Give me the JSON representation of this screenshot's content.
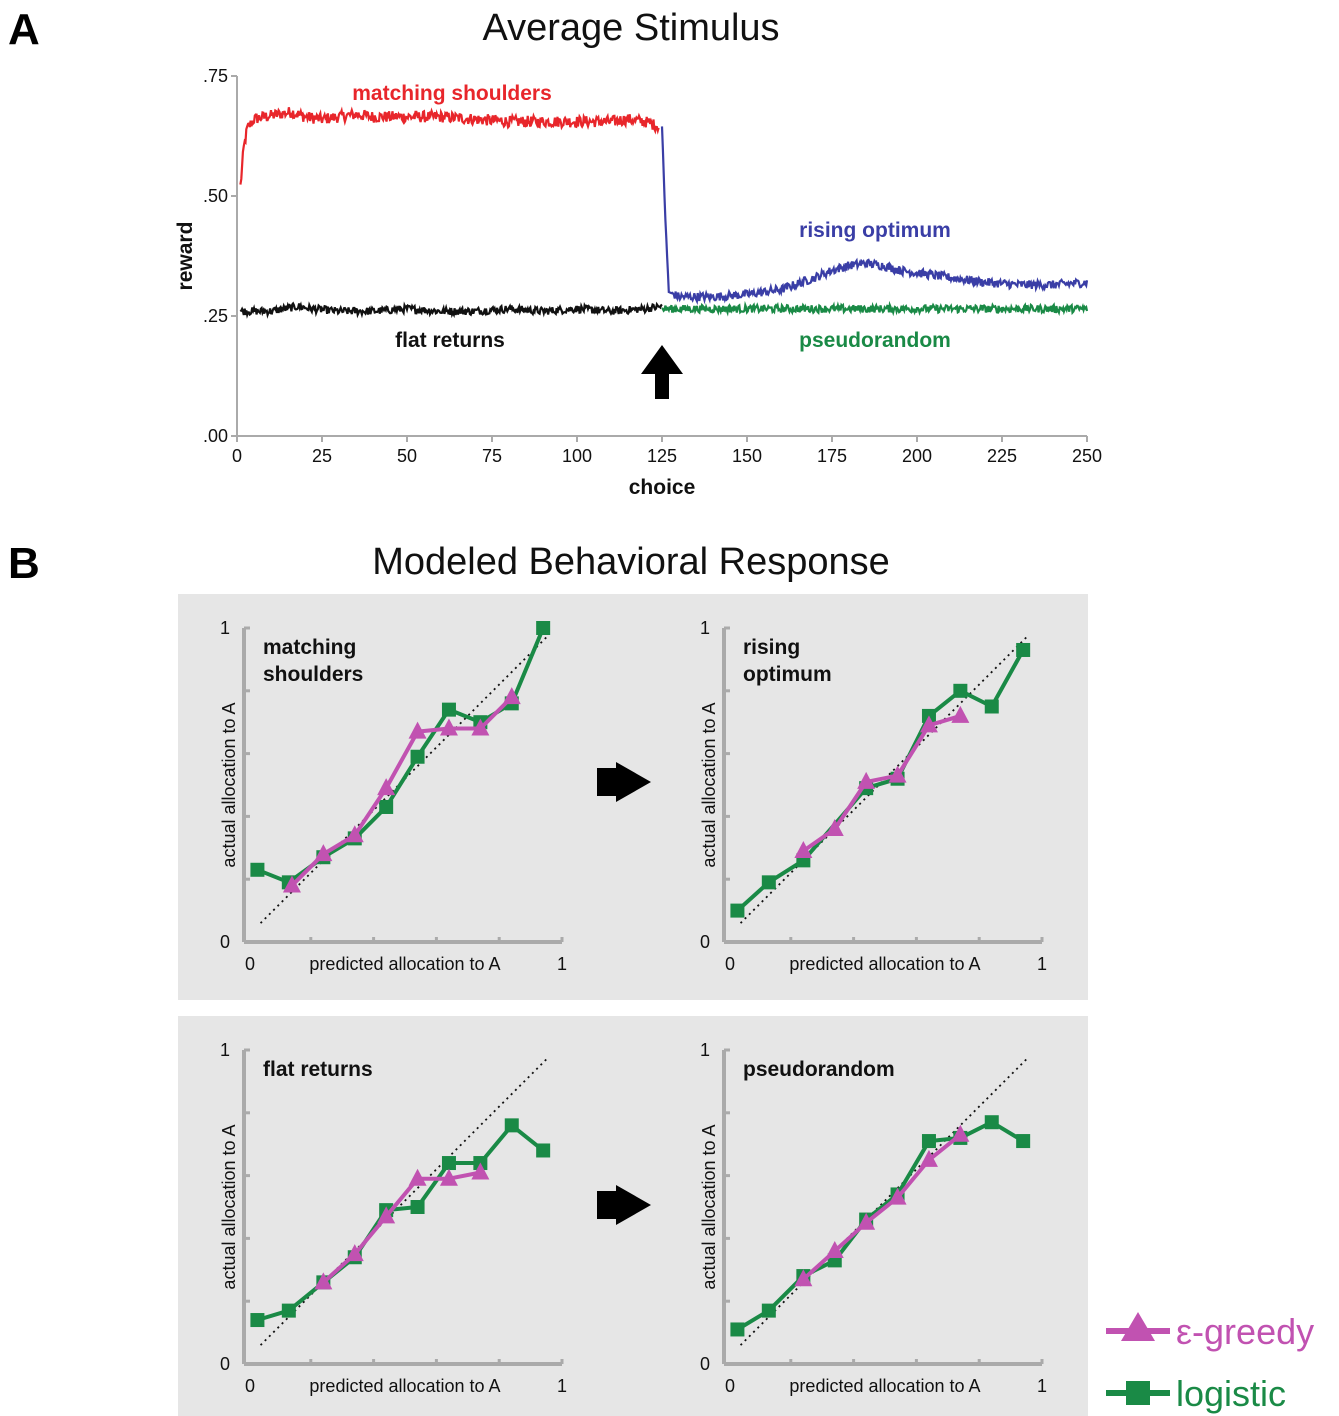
{
  "colors": {
    "red": "#e8262b",
    "blue": "#3a3ea6",
    "black": "#111111",
    "green": "#1a8a46",
    "magenta": "#c152b1",
    "panel_bg": "#e6e6e6"
  },
  "panel_a": {
    "letter": "A",
    "title": "Average Stimulus",
    "xlabel": "choice",
    "ylabel": "reward",
    "y_ticks": [
      ".00",
      ".25",
      ".50",
      ".75"
    ],
    "x_ticks": [
      "0",
      "25",
      "50",
      "75",
      "100",
      "125",
      "150",
      "175",
      "200",
      "225",
      "250"
    ],
    "arrow_icon": "up-arrow-icon"
  },
  "panel_b": {
    "letter": "B",
    "title": "Modeled Behavioral Response",
    "xlabel": "predicted allocation to A",
    "ylabel": "actual allocation to A",
    "tick_zero": "0",
    "tick_one": "1",
    "transition_icon": "right-arrow-icon"
  },
  "legend": {
    "egreedy": "ε-greedy",
    "logistic": "logistic"
  },
  "chart_data": [
    {
      "type": "line",
      "title": "Average Stimulus",
      "xlabel": "choice",
      "ylabel": "reward",
      "xlim": [
        0,
        250
      ],
      "ylim": [
        0,
        0.75
      ],
      "series": [
        {
          "name": "matching shoulders",
          "color": "#e8262b",
          "x": [
            1,
            2,
            3,
            5,
            8,
            12,
            16,
            20,
            25,
            30,
            35,
            40,
            50,
            60,
            70,
            80,
            90,
            100,
            110,
            115,
            120,
            124
          ],
          "y": [
            0.52,
            0.6,
            0.64,
            0.66,
            0.665,
            0.67,
            0.675,
            0.665,
            0.66,
            0.665,
            0.67,
            0.665,
            0.665,
            0.665,
            0.66,
            0.655,
            0.655,
            0.655,
            0.655,
            0.66,
            0.655,
            0.645
          ]
        },
        {
          "name": "flat returns",
          "color": "#111111",
          "x": [
            1,
            10,
            18,
            22,
            30,
            40,
            50,
            60,
            70,
            80,
            90,
            100,
            110,
            120,
            125
          ],
          "y": [
            0.26,
            0.26,
            0.27,
            0.265,
            0.26,
            0.26,
            0.265,
            0.26,
            0.26,
            0.265,
            0.26,
            0.265,
            0.26,
            0.265,
            0.27
          ]
        },
        {
          "name": "rising optimum",
          "color": "#3a3ea6",
          "x": [
            125,
            126,
            127,
            130,
            140,
            150,
            160,
            170,
            175,
            180,
            185,
            190,
            195,
            200,
            210,
            220,
            230,
            240,
            250
          ],
          "y": [
            0.645,
            0.45,
            0.3,
            0.29,
            0.29,
            0.295,
            0.305,
            0.33,
            0.345,
            0.355,
            0.36,
            0.355,
            0.345,
            0.34,
            0.33,
            0.32,
            0.315,
            0.315,
            0.32
          ]
        },
        {
          "name": "pseudorandom",
          "color": "#1a8a46",
          "x": [
            125,
            140,
            160,
            180,
            200,
            220,
            240,
            250
          ],
          "y": [
            0.265,
            0.265,
            0.265,
            0.265,
            0.265,
            0.265,
            0.265,
            0.265
          ]
        }
      ],
      "annotations": [
        {
          "text": "",
          "x": 125,
          "y": 0.16,
          "kind": "up-arrow"
        }
      ]
    },
    {
      "type": "line",
      "title": "matching shoulders",
      "xlabel": "predicted allocation to A",
      "ylabel": "actual allocation to A",
      "xlim": [
        0,
        1
      ],
      "ylim": [
        0,
        1
      ],
      "series": [
        {
          "name": "ε-greedy",
          "color": "#c152b1",
          "x": [
            0.14,
            0.24,
            0.34,
            0.44,
            0.54,
            0.64,
            0.74,
            0.84
          ],
          "y": [
            0.18,
            0.28,
            0.34,
            0.49,
            0.67,
            0.68,
            0.68,
            0.78
          ]
        },
        {
          "name": "logistic",
          "color": "#1a8a46",
          "x": [
            0.03,
            0.13,
            0.24,
            0.34,
            0.44,
            0.54,
            0.64,
            0.74,
            0.84,
            0.94
          ],
          "y": [
            0.23,
            0.19,
            0.27,
            0.33,
            0.43,
            0.59,
            0.74,
            0.7,
            0.76,
            1.0
          ]
        }
      ]
    },
    {
      "type": "line",
      "title": "rising optimum",
      "xlabel": "predicted allocation to A",
      "ylabel": "actual allocation to A",
      "xlim": [
        0,
        1
      ],
      "ylim": [
        0,
        1
      ],
      "series": [
        {
          "name": "ε-greedy",
          "color": "#c152b1",
          "x": [
            0.24,
            0.34,
            0.44,
            0.54,
            0.64,
            0.74
          ],
          "y": [
            0.29,
            0.36,
            0.51,
            0.53,
            0.69,
            0.72
          ]
        },
        {
          "name": "logistic",
          "color": "#1a8a46",
          "x": [
            0.03,
            0.13,
            0.24,
            0.44,
            0.54,
            0.64,
            0.74,
            0.84,
            0.94
          ],
          "y": [
            0.1,
            0.19,
            0.26,
            0.49,
            0.52,
            0.72,
            0.8,
            0.75,
            0.93
          ]
        }
      ]
    },
    {
      "type": "line",
      "title": "flat returns",
      "xlabel": "predicted allocation to A",
      "ylabel": "actual allocation to A",
      "xlim": [
        0,
        1
      ],
      "ylim": [
        0,
        1
      ],
      "series": [
        {
          "name": "ε-greedy",
          "color": "#c152b1",
          "x": [
            0.24,
            0.34,
            0.44,
            0.54,
            0.64,
            0.74
          ],
          "y": [
            0.26,
            0.35,
            0.47,
            0.59,
            0.59,
            0.61
          ]
        },
        {
          "name": "logistic",
          "color": "#1a8a46",
          "x": [
            0.03,
            0.13,
            0.24,
            0.34,
            0.44,
            0.54,
            0.64,
            0.74,
            0.84,
            0.94
          ],
          "y": [
            0.14,
            0.17,
            0.26,
            0.34,
            0.49,
            0.5,
            0.64,
            0.64,
            0.76,
            0.68
          ]
        }
      ]
    },
    {
      "type": "line",
      "title": "pseudorandom",
      "xlabel": "predicted allocation to A",
      "ylabel": "actual allocation to A",
      "xlim": [
        0,
        1
      ],
      "ylim": [
        0,
        1
      ],
      "series": [
        {
          "name": "ε-greedy",
          "color": "#c152b1",
          "x": [
            0.24,
            0.34,
            0.44,
            0.54,
            0.64,
            0.74
          ],
          "y": [
            0.27,
            0.36,
            0.45,
            0.53,
            0.65,
            0.73
          ]
        },
        {
          "name": "logistic",
          "color": "#1a8a46",
          "x": [
            0.03,
            0.13,
            0.24,
            0.34,
            0.44,
            0.54,
            0.64,
            0.74,
            0.84,
            0.94
          ],
          "y": [
            0.11,
            0.17,
            0.28,
            0.33,
            0.46,
            0.54,
            0.71,
            0.72,
            0.77,
            0.71
          ]
        }
      ]
    }
  ]
}
